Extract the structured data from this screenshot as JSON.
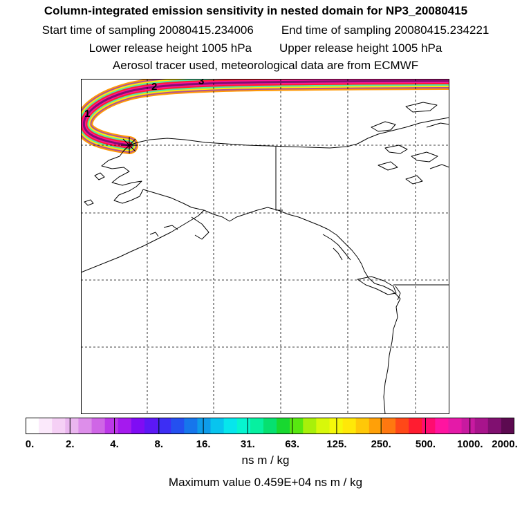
{
  "title": "Column-integrated emission sensitivity in nested domain for NP3_20080415",
  "start_time": "Start time of sampling 20080415.234006",
  "end_time": "End time of sampling 20080415.234221",
  "lower_height": "Lower release height 1005 hPa",
  "upper_height": "Upper release height 1005 hPa",
  "tracer_note": "Aerosol tracer used, meteorological data are from ECMWF",
  "colorbar": {
    "labels": [
      "0.",
      "2.",
      "4.",
      "8.",
      "16.",
      "31.",
      "63.",
      "125.",
      "250.",
      "500.",
      "1000.",
      "2000."
    ],
    "units": "ns m / kg",
    "colors": [
      "#ffffff",
      "#fbe9fb",
      "#f5d0f5",
      "#eab6ef",
      "#dd8eea",
      "#cf66e6",
      "#bc38e8",
      "#a51aee",
      "#7f0cf4",
      "#5c18f5",
      "#3d2ef4",
      "#2450f0",
      "#1676ec",
      "#0e9cea",
      "#08c4ee",
      "#06e6ec",
      "#06f5d0",
      "#06f0a0",
      "#06e070",
      "#18d830",
      "#58e810",
      "#a8f00a",
      "#d8f80a",
      "#f5f80a",
      "#ffe808",
      "#ffc808",
      "#ffa008",
      "#ff7810",
      "#ff4818",
      "#ff1c30",
      "#ff0c70",
      "#ff14a0",
      "#e41aa8",
      "#c81aa0",
      "#a8148c",
      "#801070",
      "#5c0a50"
    ]
  },
  "max_value": "Maximum value  0.459E+04 ns m / kg",
  "map": {
    "trajectory_labels": [
      "1",
      "2",
      "3"
    ],
    "release_marker": "release-star"
  }
}
